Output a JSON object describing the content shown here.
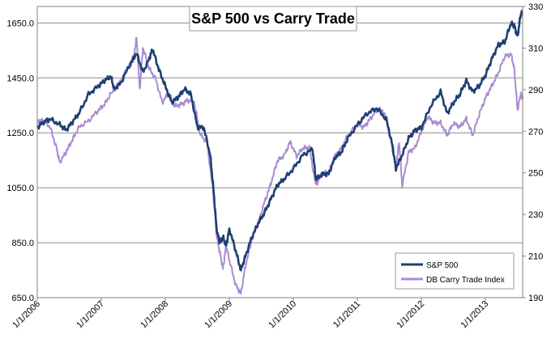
{
  "chart_data": {
    "type": "line",
    "title": "S&P 500 vs Carry Trade",
    "xlabel": "",
    "ylabel": "",
    "x_ticks": [
      "1/1/2006",
      "1/1/2007",
      "1/1/2008",
      "1/1/2009",
      "1/1/2010",
      "1/1/2011",
      "1/1/2012",
      "1/1/2013"
    ],
    "x_range": [
      2006.0,
      2013.58
    ],
    "y_left": {
      "ticks": [
        "650.0",
        "850.0",
        "1050.0",
        "1250.0",
        "1450.0",
        "1650.0"
      ],
      "range": [
        650,
        1710
      ]
    },
    "y_right": {
      "ticks": [
        "190",
        "210",
        "230",
        "250",
        "270",
        "290",
        "310",
        "330"
      ],
      "range": [
        190,
        330
      ]
    },
    "grid": true,
    "legend_position": "bottom-right",
    "series": [
      {
        "name": "S&P 500",
        "axis": "left",
        "color": "#1f3f73",
        "x": [
          2006.0,
          2006.1,
          2006.2,
          2006.35,
          2006.45,
          2006.55,
          2006.65,
          2006.8,
          2006.95,
          2007.05,
          2007.15,
          2007.2,
          2007.3,
          2007.45,
          2007.55,
          2007.65,
          2007.75,
          2007.8,
          2007.9,
          2008.0,
          2008.1,
          2008.2,
          2008.3,
          2008.4,
          2008.5,
          2008.6,
          2008.7,
          2008.75,
          2008.8,
          2008.85,
          2008.9,
          2008.95,
          2009.0,
          2009.1,
          2009.18,
          2009.25,
          2009.35,
          2009.45,
          2009.55,
          2009.65,
          2009.75,
          2009.85,
          2010.0,
          2010.15,
          2010.3,
          2010.35,
          2010.45,
          2010.55,
          2010.65,
          2010.75,
          2010.85,
          2011.0,
          2011.15,
          2011.3,
          2011.45,
          2011.55,
          2011.6,
          2011.7,
          2011.8,
          2011.9,
          2012.0,
          2012.15,
          2012.3,
          2012.4,
          2012.5,
          2012.6,
          2012.7,
          2012.8,
          2012.9,
          2013.0,
          2013.1,
          2013.2,
          2013.3,
          2013.4,
          2013.45,
          2013.5,
          2013.55,
          2013.58
        ],
        "values": [
          1270,
          1290,
          1300,
          1280,
          1260,
          1290,
          1320,
          1390,
          1420,
          1440,
          1455,
          1410,
          1430,
          1500,
          1540,
          1470,
          1520,
          1555,
          1480,
          1420,
          1360,
          1380,
          1410,
          1390,
          1270,
          1270,
          1170,
          1050,
          900,
          850,
          870,
          840,
          900,
          820,
          750,
          800,
          870,
          920,
          960,
          1010,
          1060,
          1080,
          1120,
          1170,
          1190,
          1080,
          1100,
          1100,
          1160,
          1180,
          1230,
          1280,
          1320,
          1340,
          1300,
          1200,
          1120,
          1170,
          1230,
          1260,
          1270,
          1350,
          1400,
          1320,
          1360,
          1390,
          1440,
          1400,
          1420,
          1460,
          1520,
          1570,
          1580,
          1650,
          1640,
          1600,
          1680,
          1690
        ]
      },
      {
        "name": "DB Carry Trade Index",
        "axis": "right",
        "color": "#a98bd1",
        "x": [
          2006.0,
          2006.1,
          2006.2,
          2006.3,
          2006.35,
          2006.45,
          2006.55,
          2006.65,
          2006.8,
          2006.95,
          2007.05,
          2007.15,
          2007.3,
          2007.4,
          2007.5,
          2007.55,
          2007.6,
          2007.65,
          2007.75,
          2007.85,
          2007.95,
          2008.05,
          2008.15,
          2008.25,
          2008.35,
          2008.45,
          2008.55,
          2008.65,
          2008.75,
          2008.8,
          2008.85,
          2008.9,
          2008.95,
          2009.0,
          2009.1,
          2009.18,
          2009.25,
          2009.35,
          2009.45,
          2009.55,
          2009.65,
          2009.75,
          2009.85,
          2009.95,
          2010.05,
          2010.15,
          2010.25,
          2010.35,
          2010.45,
          2010.55,
          2010.65,
          2010.75,
          2010.85,
          2011.0,
          2011.1,
          2011.2,
          2011.3,
          2011.4,
          2011.5,
          2011.6,
          2011.65,
          2011.7,
          2011.8,
          2011.9,
          2012.0,
          2012.1,
          2012.2,
          2012.3,
          2012.4,
          2012.5,
          2012.6,
          2012.7,
          2012.8,
          2012.9,
          2013.0,
          2013.1,
          2013.2,
          2013.3,
          2013.4,
          2013.45,
          2013.5,
          2013.55,
          2013.58
        ],
        "values": [
          275,
          275,
          272,
          262,
          255,
          260,
          266,
          272,
          275,
          280,
          283,
          288,
          294,
          300,
          304,
          315,
          290,
          310,
          300,
          295,
          284,
          288,
          282,
          283,
          285,
          284,
          268,
          265,
          240,
          220,
          212,
          204,
          215,
          208,
          196,
          192,
          205,
          218,
          226,
          236,
          245,
          256,
          258,
          265,
          258,
          262,
          262,
          244,
          250,
          250,
          258,
          262,
          268,
          273,
          272,
          276,
          280,
          280,
          270,
          252,
          265,
          244,
          260,
          262,
          270,
          277,
          274,
          274,
          268,
          274,
          272,
          276,
          268,
          278,
          286,
          292,
          298,
          306,
          307,
          300,
          280,
          288,
          286
        ]
      }
    ]
  }
}
